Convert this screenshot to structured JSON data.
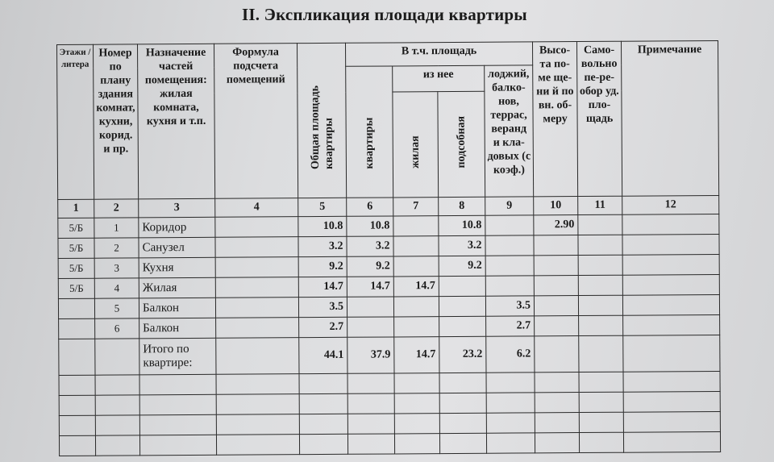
{
  "title": "II. Экспликация площади квартиры",
  "headers": {
    "c1": "Этажи / литера",
    "c2": "Номер по плану здания комнат, кухни, корид. и пр.",
    "c3": "Назначение частей помещения: жилая комната, кухня и т.п.",
    "c4": "Формула подсчета помещений",
    "c5": "Общая площадь квартиры",
    "group": "В т.ч. площадь",
    "c6": "квартиры",
    "subgroup": "из нее",
    "c7": "жилая",
    "c8": "подсобная",
    "c9": "лоджий, балко-нов, террас, веранд и кла-довых (с коэф.)",
    "c10": "Высо-та по-ме ще-ни й по вн. об-меру",
    "c11": "Само-вольно пе-ре-обор уд. пло-щадь",
    "c12": "Примечание"
  },
  "column_numbers": [
    "1",
    "2",
    "3",
    "4",
    "5",
    "6",
    "7",
    "8",
    "9",
    "10",
    "11",
    "12"
  ],
  "rows": [
    {
      "floor": "5/Б",
      "no": "1",
      "name": "Коридор",
      "formula": "",
      "total": "10.8",
      "apt": "10.8",
      "living": "",
      "aux": "10.8",
      "balcony": "",
      "height": "2.90",
      "unauth": "",
      "note": ""
    },
    {
      "floor": "5/Б",
      "no": "2",
      "name": "Санузел",
      "formula": "",
      "total": "3.2",
      "apt": "3.2",
      "living": "",
      "aux": "3.2",
      "balcony": "",
      "height": "",
      "unauth": "",
      "note": ""
    },
    {
      "floor": "5/Б",
      "no": "3",
      "name": "Кухня",
      "formula": "",
      "total": "9.2",
      "apt": "9.2",
      "living": "",
      "aux": "9.2",
      "balcony": "",
      "height": "",
      "unauth": "",
      "note": ""
    },
    {
      "floor": "5/Б",
      "no": "4",
      "name": "Жилая",
      "formula": "",
      "total": "14.7",
      "apt": "14.7",
      "living": "14.7",
      "aux": "",
      "balcony": "",
      "height": "",
      "unauth": "",
      "note": ""
    },
    {
      "floor": "",
      "no": "5",
      "name": "Балкон",
      "formula": "",
      "total": "3.5",
      "apt": "",
      "living": "",
      "aux": "",
      "balcony": "3.5",
      "height": "",
      "unauth": "",
      "note": ""
    },
    {
      "floor": "",
      "no": "6",
      "name": "Балкон",
      "formula": "",
      "total": "2.7",
      "apt": "",
      "living": "",
      "aux": "",
      "balcony": "2.7",
      "height": "",
      "unauth": "",
      "note": ""
    }
  ],
  "total_row": {
    "name": "Итого по квартире:",
    "total": "44.1",
    "apt": "37.9",
    "living": "14.7",
    "aux": "23.2",
    "balcony": "6.2"
  }
}
